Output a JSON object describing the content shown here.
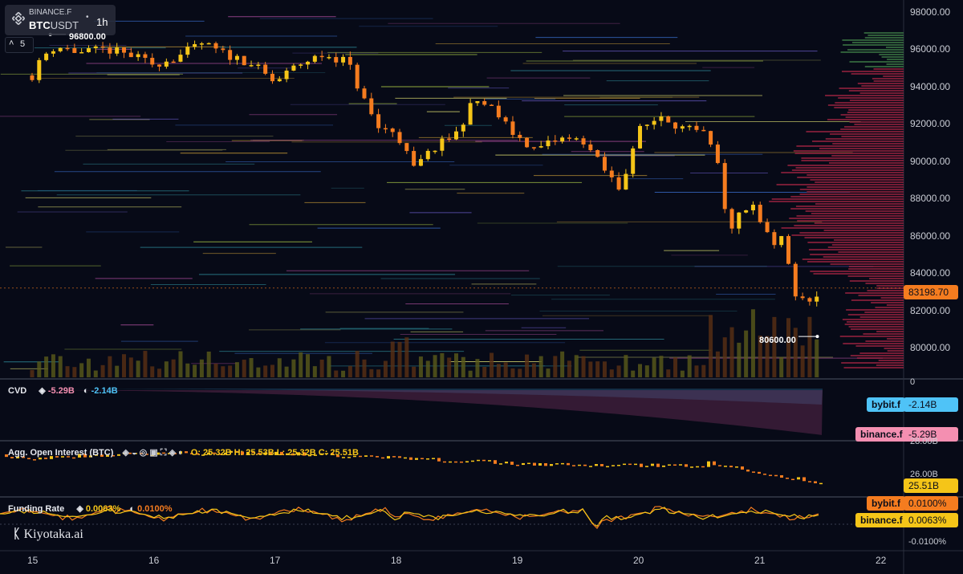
{
  "header": {
    "exchange": "BINANCE.F",
    "symbol_main": "BTC",
    "symbol_quote": "USDT",
    "interval": "1h",
    "indicator_count": "5",
    "high_label": "96800.00",
    "low_label": "80600.00"
  },
  "colors": {
    "up": "#f5c518",
    "down": "#f57c1f",
    "bg": "#070a17",
    "bybit": "#4fc3f7",
    "binance": "#f48fb1",
    "oi": "#f5c518",
    "funding_bybit": "#f57c1f",
    "funding_binance": "#f5c518"
  },
  "price_axis": {
    "ticks": [
      "98000.00",
      "96000.00",
      "94000.00",
      "92000.00",
      "90000.00",
      "88000.00",
      "86000.00",
      "84000.00",
      "82000.00",
      "80000.00"
    ],
    "current": "83198.70"
  },
  "cvd": {
    "title": "CVD",
    "binance_value": "-5.29B",
    "bybit_value": "-2.14B",
    "axis_zero": "0",
    "bybit_tag": "bybit.f",
    "bybit_tag_value": "-2.14B",
    "binance_tag": "binance.f",
    "binance_tag_value": "-5.29B"
  },
  "oi": {
    "title": "Agg. Open Interest (BTC)",
    "o": "O: 25.32B",
    "h": "H: 25.53B",
    "l": "L: 25.32B",
    "c": "C: 25.51B",
    "axis_top": "28.00B",
    "axis_mid": "26.00B",
    "current": "25.51B"
  },
  "funding": {
    "title": "Funding Rate",
    "binance_value": "0.0063%",
    "bybit_value": "0.0100%",
    "bybit_tag": "bybit.f",
    "bybit_tag_value": "0.0100%",
    "binance_tag": "binance.f",
    "binance_tag_value": "0.0063%",
    "axis_low": "-0.0100%"
  },
  "brand": "Kiyotaka.ai",
  "x_axis": [
    "15",
    "16",
    "17",
    "18",
    "19",
    "20",
    "21",
    "22"
  ],
  "chart_data": {
    "type": "candlestick",
    "x_days": [
      "15",
      "16",
      "17",
      "18",
      "19",
      "20",
      "21",
      "22"
    ],
    "ylim": [
      78500,
      98500
    ],
    "price_at": [
      {
        "day": "15.0",
        "price": 94600
      },
      {
        "day": "15.1",
        "price": 95700
      },
      {
        "day": "15.2",
        "price": 96200
      },
      {
        "day": "15.4",
        "price": 95800
      },
      {
        "day": "15.6",
        "price": 96000
      },
      {
        "day": "15.8",
        "price": 95700
      },
      {
        "day": "16.0",
        "price": 95200
      },
      {
        "day": "16.2",
        "price": 95600
      },
      {
        "day": "16.4",
        "price": 96300
      },
      {
        "day": "16.6",
        "price": 95700
      },
      {
        "day": "16.8",
        "price": 95300
      },
      {
        "day": "17.0",
        "price": 94200
      },
      {
        "day": "17.2",
        "price": 95200
      },
      {
        "day": "17.4",
        "price": 95700
      },
      {
        "day": "17.6",
        "price": 95400
      },
      {
        "day": "17.7",
        "price": 93800
      },
      {
        "day": "17.85",
        "price": 91800
      },
      {
        "day": "18.0",
        "price": 91600
      },
      {
        "day": "18.15",
        "price": 89600
      },
      {
        "day": "18.3",
        "price": 90600
      },
      {
        "day": "18.5",
        "price": 91500
      },
      {
        "day": "18.65",
        "price": 93300
      },
      {
        "day": "18.8",
        "price": 92800
      },
      {
        "day": "18.95",
        "price": 91600
      },
      {
        "day": "19.15",
        "price": 90600
      },
      {
        "day": "19.35",
        "price": 91200
      },
      {
        "day": "19.55",
        "price": 91100
      },
      {
        "day": "19.7",
        "price": 89700
      },
      {
        "day": "19.85",
        "price": 88500
      },
      {
        "day": "20.0",
        "price": 91600
      },
      {
        "day": "20.2",
        "price": 92500
      },
      {
        "day": "20.35",
        "price": 91800
      },
      {
        "day": "20.55",
        "price": 91400
      },
      {
        "day": "20.65",
        "price": 90000
      },
      {
        "day": "20.75",
        "price": 86200
      },
      {
        "day": "20.85",
        "price": 87200
      },
      {
        "day": "20.95",
        "price": 87700
      },
      {
        "day": "21.1",
        "price": 85500
      },
      {
        "day": "21.2",
        "price": 85800
      },
      {
        "day": "21.3",
        "price": 82800
      },
      {
        "day": "21.45",
        "price": 82100
      },
      {
        "day": "21.5",
        "price": 83200
      }
    ],
    "high": 96800,
    "low": 80600,
    "last": 83198.7
  }
}
